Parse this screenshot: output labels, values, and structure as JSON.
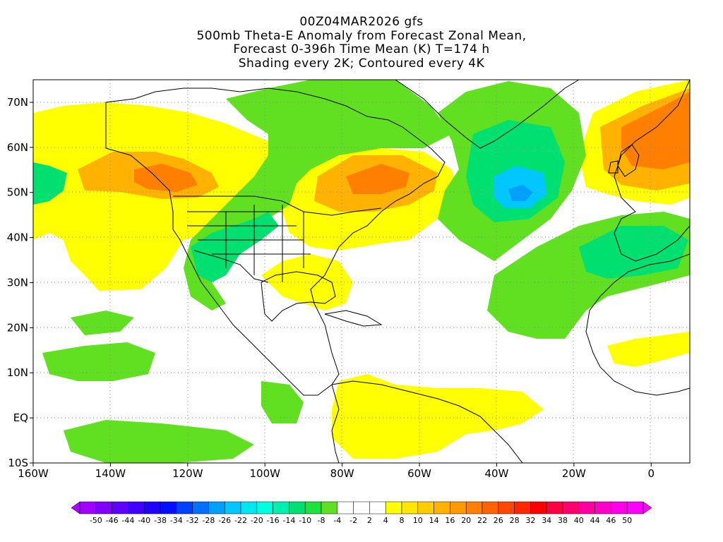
{
  "title": {
    "line1": "00Z04MAR2026 gfs",
    "line2": "500mb Theta-E Anomaly from Forecast Zonal Mean,",
    "line3": "Forecast 0-396h Time Mean (K) T=174 h",
    "line4": "Shading every 2K; Contoured every 4K"
  },
  "map": {
    "lon_range": [
      -160,
      10
    ],
    "lat_range": [
      -10,
      75
    ],
    "x_ticks": [
      "160W",
      "140W",
      "120W",
      "100W",
      "80W",
      "60W",
      "40W",
      "20W",
      "0"
    ],
    "x_tick_values": [
      -160,
      -140,
      -120,
      -100,
      -80,
      -60,
      -40,
      -20,
      0
    ],
    "y_ticks": [
      "10S",
      "EQ",
      "10N",
      "20N",
      "30N",
      "40N",
      "50N",
      "60N",
      "70N"
    ],
    "y_tick_values": [
      -10,
      0,
      10,
      20,
      30,
      40,
      50,
      60,
      70
    ],
    "gridlines": "dotted",
    "background_color": "#ffffff",
    "land_outline_color": "#000000"
  },
  "colorbar": {
    "labels": [
      "-50",
      "-46",
      "-44",
      "-40",
      "-38",
      "-34",
      "-32",
      "-28",
      "-26",
      "-22",
      "-20",
      "-16",
      "-14",
      "-10",
      "-8",
      "-4",
      "-2",
      "2",
      "4",
      "8",
      "10",
      "14",
      "16",
      "20",
      "22",
      "26",
      "28",
      "32",
      "34",
      "38",
      "40",
      "44",
      "46",
      "50"
    ],
    "colors": [
      "#a000ff",
      "#8000ff",
      "#6000ff",
      "#4000ff",
      "#2000ff",
      "#0010ff",
      "#0040ff",
      "#0070ff",
      "#00a0ff",
      "#00c8ff",
      "#00e6f0",
      "#00ffe0",
      "#00f0b0",
      "#00e070",
      "#20e040",
      "#60e020",
      "#ffffff",
      "#ffffff",
      "#ffffff",
      "#ffff00",
      "#ffe600",
      "#ffcc00",
      "#ffb300",
      "#ff9900",
      "#ff8000",
      "#ff6400",
      "#ff4800",
      "#ff2800",
      "#ff0000",
      "#ff0040",
      "#ff0070",
      "#ff00a0",
      "#ff00c8",
      "#ff00e6",
      "#ff00ff"
    ],
    "under_color": "#b000ff",
    "over_color": "#ff00ff"
  },
  "anomaly_colors": {
    "strong_positive": "#ff8000",
    "moderate_positive": "#ffb300",
    "weak_positive": "#ffff00",
    "weak_negative": "#60e020",
    "moderate_negative": "#00e070",
    "strong_negative": "#00c8ff",
    "very_strong_negative": "#00a0ff"
  }
}
